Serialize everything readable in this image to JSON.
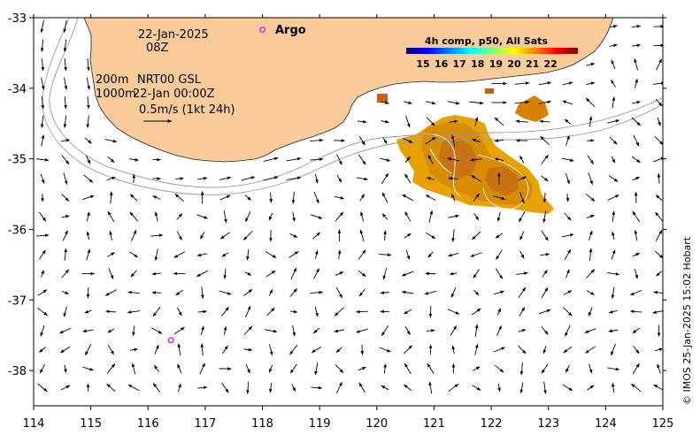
{
  "map": {
    "x_range": [
      114,
      125
    ],
    "y_range": [
      -38.5,
      -33
    ],
    "x_ticks": [
      114,
      115,
      116,
      117,
      118,
      119,
      120,
      121,
      122,
      123,
      124,
      125
    ],
    "y_ticks": [
      -33,
      -34,
      -35,
      -36,
      -37,
      -38
    ],
    "y_tick_labels": [
      "-33",
      "-34",
      "-35",
      "-36",
      "-37",
      "-38"
    ],
    "land_color": "#fbcb9a",
    "sst_palette": [
      "#e8b000",
      "#e09a00",
      "#d47c08",
      "#c86010",
      "#b84a10"
    ]
  },
  "annotations": {
    "date": "22-Jan-2025",
    "hour": "08Z",
    "legend_200": "200m",
    "legend_1000": "1000m",
    "product": "NRT00 GSL",
    "product_time": "22-Jan 00:00Z",
    "scale_label": "0.5m/s (1kt 24h)"
  },
  "argo": {
    "label": "Argo",
    "color": "#ff00ff",
    "floats": [
      {
        "lon": 116.4,
        "lat": -37.57
      }
    ],
    "legend_marker": {
      "lon": 118.0,
      "lat": -33.17
    }
  },
  "colorbar": {
    "title": "4h comp, p50, All Sats",
    "ticks": [
      "15",
      "16",
      "17",
      "18",
      "19",
      "20",
      "21",
      "22"
    ],
    "colors": [
      "#00007f",
      "#0000ff",
      "#0080ff",
      "#00ffff",
      "#80ff80",
      "#ffff00",
      "#ff8000",
      "#ff0000",
      "#7f0000"
    ]
  },
  "credit": "© IMOS 25-Jan-2025 15:02 Hobart"
}
